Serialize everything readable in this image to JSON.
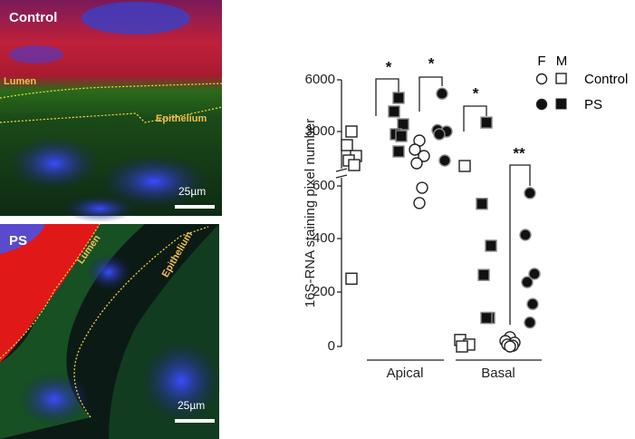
{
  "panels": [
    {
      "title": "Control",
      "labels": [
        "Lumen",
        "Epithelium"
      ],
      "scale_bar": "25µm"
    },
    {
      "title": "PS",
      "labels": [
        "Lumen",
        "Epithelium"
      ],
      "scale_bar": "25µm"
    }
  ],
  "chart_data": {
    "type": "scatter",
    "ylabel": "16S-RNA staining pixel number",
    "yticks": [
      0,
      200,
      400,
      600,
      3000,
      6000
    ],
    "ylim": [
      0,
      6000
    ],
    "legend": {
      "header": [
        "F",
        "M"
      ],
      "entries": [
        "Control",
        "PS"
      ]
    },
    "annotations": [
      "*",
      "*",
      "*",
      "**"
    ],
    "groups": [
      {
        "name": "Apical",
        "series": [
          {
            "name": "Control",
            "marker": "square",
            "filled": false,
            "values": [
              3000,
              2400,
              1920,
              1720,
              1520,
              250
            ]
          },
          {
            "name": "PS",
            "marker": "square",
            "filled": true,
            "values": [
              4950,
              4160,
              3420,
              2880,
              2800,
              2120
            ]
          },
          {
            "name": "Control",
            "marker": "circle",
            "filled": false,
            "values": [
              2600,
              2200,
              1920,
              1600,
              593,
              535
            ]
          },
          {
            "name": "PS",
            "marker": "circle",
            "filled": true,
            "values": [
              5200,
              3080,
              3000,
              2880,
              1720
            ]
          }
        ]
      },
      {
        "name": "Basal",
        "series": [
          {
            "name": "Control",
            "marker": "square",
            "filled": false,
            "values": [
              1480,
              24,
              7,
              0
            ]
          },
          {
            "name": "PS",
            "marker": "square",
            "filled": true,
            "values": [
              3520,
              532,
              373,
              264,
              105,
              105
            ]
          },
          {
            "name": "Control",
            "marker": "circle",
            "filled": false,
            "values": [
              34,
              20,
              14,
              7,
              3,
              0
            ]
          },
          {
            "name": "PS",
            "marker": "circle",
            "filled": true,
            "values": [
              573,
              414,
              268,
              237,
              156,
              88
            ]
          }
        ]
      }
    ]
  }
}
